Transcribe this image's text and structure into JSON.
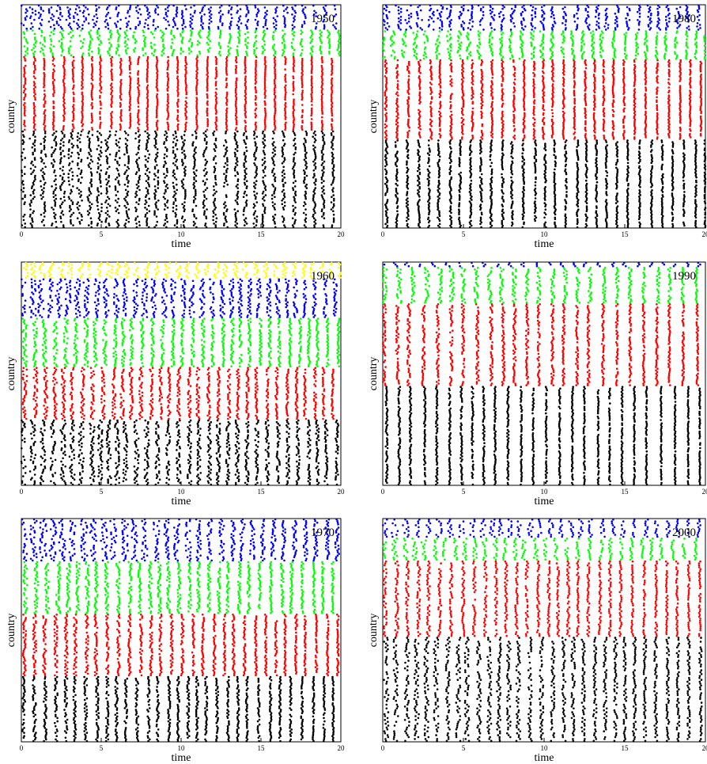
{
  "figure": {
    "panels": [
      {
        "year_label": "1950",
        "xlabel": "time",
        "ylabel": "country"
      },
      {
        "year_label": "1980",
        "xlabel": "time",
        "ylabel": "country"
      },
      {
        "year_label": "1960",
        "xlabel": "time",
        "ylabel": "country"
      },
      {
        "year_label": "1990",
        "xlabel": "time",
        "ylabel": "country"
      },
      {
        "year_label": "1970",
        "xlabel": "time",
        "ylabel": "country"
      },
      {
        "year_label": "2000",
        "xlabel": "time",
        "ylabel": "country"
      }
    ]
  },
  "chart_data": [
    {
      "type": "scatter",
      "annotation": "1950",
      "xlabel": "time",
      "ylabel": "country",
      "xlim": [
        0,
        20
      ],
      "x_ticks": [
        0,
        5,
        10,
        15,
        20
      ],
      "groups": [
        {
          "color": "#000000",
          "rows": 55,
          "jitter": 0.35
        },
        {
          "color": "#ff0000",
          "rows": 42,
          "jitter": 0.1
        },
        {
          "color": "#00ff00",
          "rows": 15,
          "jitter": 0.3
        },
        {
          "color": "#0000ff",
          "rows": 14,
          "jitter": 0.45
        }
      ],
      "spike_period": 0.6
    },
    {
      "type": "scatter",
      "annotation": "1980",
      "xlabel": "time",
      "ylabel": "country",
      "xlim": [
        0,
        20
      ],
      "x_ticks": [
        0,
        5,
        10,
        15,
        20
      ],
      "groups": [
        {
          "color": "#000000",
          "rows": 55,
          "jitter": 0.15
        },
        {
          "color": "#ff0000",
          "rows": 50,
          "jitter": 0.12
        },
        {
          "color": "#00ff00",
          "rows": 18,
          "jitter": 0.3
        },
        {
          "color": "#0000ff",
          "rows": 16,
          "jitter": 0.4
        }
      ],
      "spike_period": 0.65
    },
    {
      "type": "scatter",
      "annotation": "1960",
      "xlabel": "time",
      "ylabel": "country",
      "xlim": [
        0,
        20
      ],
      "x_ticks": [
        0,
        5,
        10,
        15,
        20
      ],
      "groups": [
        {
          "color": "#000000",
          "rows": 40,
          "jitter": 0.35
        },
        {
          "color": "#ff0000",
          "rows": 32,
          "jitter": 0.25
        },
        {
          "color": "#00ff00",
          "rows": 30,
          "jitter": 0.25
        },
        {
          "color": "#0000ff",
          "rows": 24,
          "jitter": 0.4
        },
        {
          "color": "#ffff00",
          "rows": 10,
          "jitter": 0.4
        }
      ],
      "spike_period": 0.6
    },
    {
      "type": "scatter",
      "annotation": "1990",
      "xlabel": "time",
      "ylabel": "country",
      "xlim": [
        0,
        20
      ],
      "x_ticks": [
        0,
        5,
        10,
        15,
        20
      ],
      "groups": [
        {
          "color": "#000000",
          "rows": 60,
          "jitter": 0.12
        },
        {
          "color": "#ff0000",
          "rows": 50,
          "jitter": 0.2
        },
        {
          "color": "#00ff00",
          "rows": 22,
          "jitter": 0.3
        },
        {
          "color": "#0000ff",
          "rows": 3,
          "jitter": 0.3
        }
      ],
      "spike_period": 0.8
    },
    {
      "type": "scatter",
      "annotation": "1970",
      "xlabel": "time",
      "ylabel": "country",
      "xlim": [
        0,
        20
      ],
      "x_ticks": [
        0,
        5,
        10,
        15,
        20
      ],
      "groups": [
        {
          "color": "#000000",
          "rows": 40,
          "jitter": 0.2
        },
        {
          "color": "#ff0000",
          "rows": 38,
          "jitter": 0.2
        },
        {
          "color": "#00ff00",
          "rows": 32,
          "jitter": 0.25
        },
        {
          "color": "#0000ff",
          "rows": 26,
          "jitter": 0.45
        }
      ],
      "spike_period": 0.65
    },
    {
      "type": "scatter",
      "annotation": "2000",
      "xlabel": "time",
      "ylabel": "country",
      "xlim": [
        0,
        20
      ],
      "x_ticks": [
        0,
        5,
        10,
        15,
        20
      ],
      "groups": [
        {
          "color": "#000000",
          "rows": 55,
          "jitter": 0.3
        },
        {
          "color": "#ff0000",
          "rows": 40,
          "jitter": 0.2
        },
        {
          "color": "#00ff00",
          "rows": 12,
          "jitter": 0.3
        },
        {
          "color": "#0000ff",
          "rows": 10,
          "jitter": 0.4
        }
      ],
      "spike_period": 0.65
    }
  ]
}
